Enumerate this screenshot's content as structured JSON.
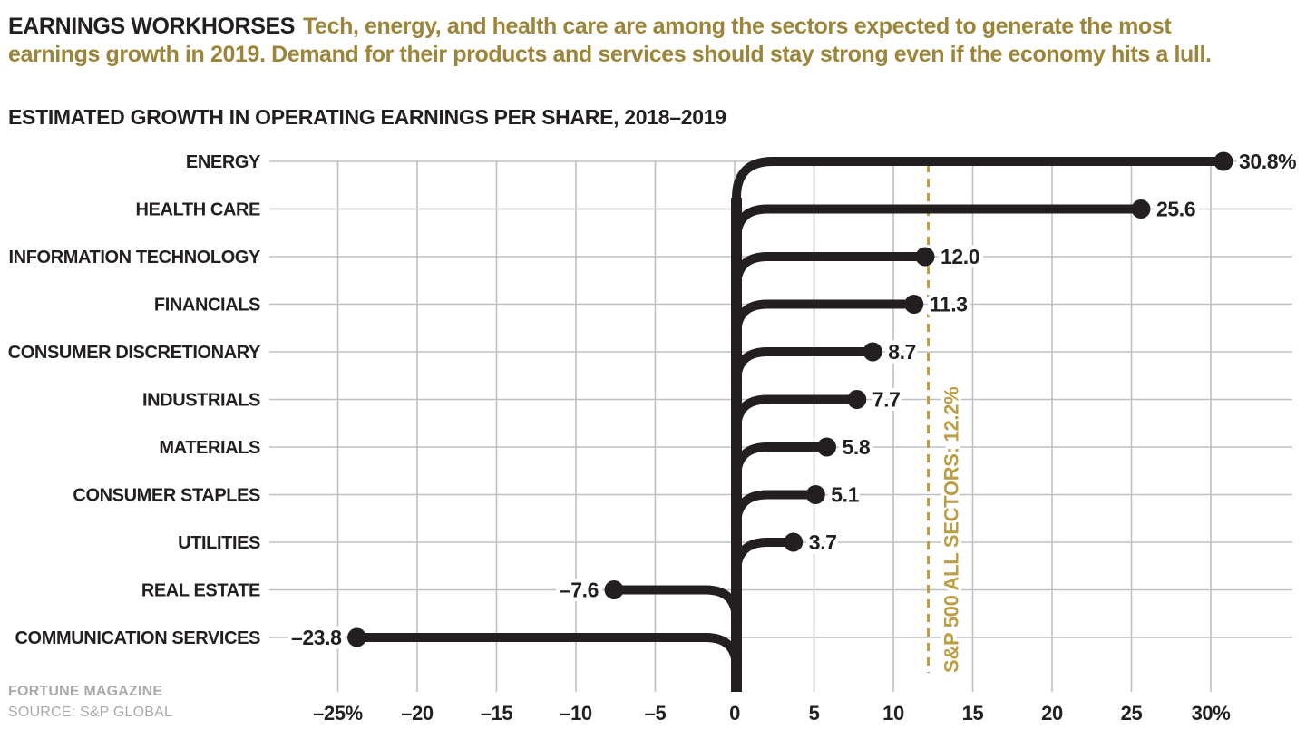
{
  "header": {
    "kicker": "EARNINGS WORKHORSES",
    "description": "Tech, energy, and health care are among the sectors expected to generate the most earnings growth in 2019. Demand for their products and services should stay strong even if the economy hits a lull."
  },
  "subtitle": "ESTIMATED GROWTH IN OPERATING EARNINGS PER SHARE, 2018–2019",
  "chart_data": {
    "type": "bar",
    "variant": "branch-lollipop-horizontal",
    "title": "ESTIMATED GROWTH IN OPERATING EARNINGS PER SHARE, 2018–2019",
    "categories": [
      "ENERGY",
      "HEALTH CARE",
      "INFORMATION TECHNOLOGY",
      "FINANCIALS",
      "CONSUMER DISCRETIONARY",
      "INDUSTRIALS",
      "MATERIALS",
      "CONSUMER STAPLES",
      "UTILITIES",
      "REAL ESTATE",
      "COMMUNICATION SERVICES"
    ],
    "values": [
      30.8,
      25.6,
      12.0,
      11.3,
      8.7,
      7.7,
      5.8,
      5.1,
      3.7,
      -7.6,
      -23.8
    ],
    "value_labels": [
      "30.8%",
      "25.6",
      "12.0",
      "11.3",
      "8.7",
      "7.7",
      "5.8",
      "5.1",
      "3.7",
      "–7.6",
      "–23.8"
    ],
    "x_ticks": [
      -25,
      -20,
      -15,
      -10,
      -5,
      0,
      5,
      10,
      15,
      20,
      25,
      30
    ],
    "x_tick_labels": [
      "–25%",
      "–20",
      "–15",
      "–10",
      "–5",
      "0",
      "5",
      "10",
      "15",
      "20",
      "25",
      "30%"
    ],
    "xlim": [
      -25,
      30
    ],
    "grid": true,
    "legend": "none",
    "reference_line": {
      "value": 12.2,
      "label": "S&P 500 ALL SECTORS: 12.2%"
    }
  },
  "footer": {
    "line1": "FORTUNE MAGAZINE",
    "line2": "SOURCE: S&P GLOBAL"
  },
  "colors": {
    "ink": "#231f20",
    "gold_text": "#9c8438",
    "ref_gold": "#bd9e43",
    "grid": "#bfc0c2",
    "footer_gray": "#a8aaad"
  }
}
